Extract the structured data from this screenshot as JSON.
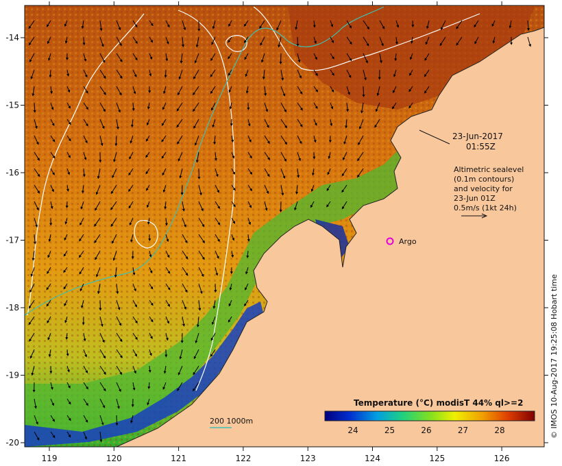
{
  "map": {
    "x_ticks": [
      "119",
      "120",
      "121",
      "122",
      "123",
      "124",
      "125",
      "126"
    ],
    "y_ticks": [
      "-14",
      "-15",
      "-16",
      "-17",
      "-18",
      "-19",
      "-20"
    ],
    "date_line1": "23-Jun-2017",
    "date_line2": "01:55Z",
    "altimetry_lines": [
      "Altimetric sealevel",
      "(0.1m contours)",
      "and velocity for",
      "23-Jun 01Z",
      "0.5m/s (1kt 24h)"
    ],
    "argo_label": "Argo",
    "bathy_label": "200  1000m",
    "colorbar": {
      "title": "Temperature (°C) modisT 44% ql>=2",
      "ticks": [
        "24",
        "25",
        "26",
        "27",
        "28"
      ]
    },
    "credit": "© IMOS 10-Aug-2017 19:25:08 Hobart time",
    "colors": {
      "land": "#f9c79c",
      "warm": "#c85a12",
      "cool": "#14a03c",
      "cold": "#1020a0",
      "argo": "#e000e0",
      "contour": "#ffffff",
      "bathy": "#40c0b0"
    }
  }
}
